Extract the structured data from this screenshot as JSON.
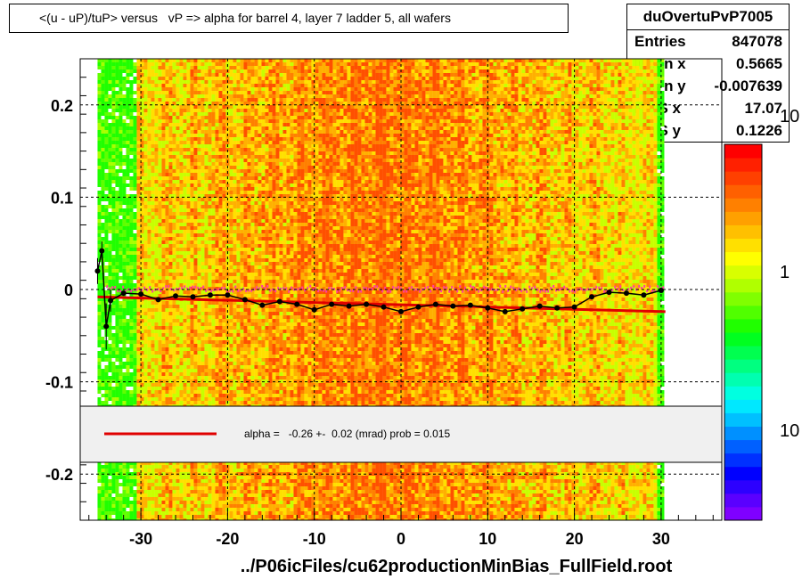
{
  "title": "<(u - uP)/tuP> versus   vP => alpha for barrel 4, layer 7 ladder 5, all wafers",
  "footer_label": "../P06icFiles/cu62productionMinBias_FullField.root",
  "stats": {
    "name": "duOvertuPvP7005",
    "rows": [
      {
        "label": "Entries",
        "value": "847078"
      },
      {
        "label": "Mean x",
        "value": "0.5665"
      },
      {
        "label": "Mean y",
        "value": "-0.007639"
      },
      {
        "label": "RMS x",
        "value": "17.07"
      },
      {
        "label": "RMS y",
        "value": "0.1226"
      }
    ]
  },
  "legend": {
    "text": "alpha =   -0.26 +-  0.02 (mrad) prob = 0.015",
    "line_color": "#e00000"
  },
  "chart_data": {
    "type": "heatmap",
    "xlim": [
      -37,
      37
    ],
    "ylim": [
      -0.25,
      0.25
    ],
    "x_ticks": [
      -30,
      -20,
      -10,
      0,
      10,
      20,
      30
    ],
    "x_tick_labels": [
      "-30",
      "-20",
      "-10",
      "0",
      "10",
      "20",
      "30"
    ],
    "y_ticks": [
      -0.2,
      -0.1,
      0,
      0.1,
      0.2
    ],
    "y_tick_labels": [
      "-0.2",
      "-0.1",
      "0",
      "0.1",
      "0.2"
    ],
    "grid": true,
    "colorbar": {
      "tick_labels": [
        "10",
        "1",
        "10"
      ],
      "colors": [
        "#7f00ff",
        "#5a00ff",
        "#2d00ff",
        "#0000ff",
        "#0030ff",
        "#0060ff",
        "#0090ff",
        "#00c0ff",
        "#00e8ff",
        "#00ffe0",
        "#00ffb0",
        "#00ff80",
        "#00ff50",
        "#00ff20",
        "#20ff00",
        "#50ff00",
        "#80ff00",
        "#b0ff00",
        "#d8ff00",
        "#ffff00",
        "#ffe000",
        "#ffc000",
        "#ffa000",
        "#ff8000",
        "#ff6000",
        "#ff4000",
        "#ff2000",
        "#ff0000"
      ]
    },
    "fit_line": {
      "x": [
        -35,
        30.5
      ],
      "y": [
        -0.008,
        -0.024
      ],
      "color": "#e00000"
    },
    "profile": {
      "x": [
        -35.0,
        -34.5,
        -34.0,
        -33.5,
        -32.0,
        -30.0,
        -28.0,
        -26.0,
        -24.0,
        -22.0,
        -20.0,
        -18.0,
        -16.0,
        -14.0,
        -12.0,
        -10.0,
        -8.0,
        -6.0,
        -4.0,
        -2.0,
        0.0,
        2.0,
        4.0,
        6.0,
        8.0,
        10.0,
        12.0,
        14.0,
        16.0,
        18.0,
        20.0,
        22.0,
        24.0,
        26.0,
        28.0,
        30.0
      ],
      "y": [
        0.02,
        0.042,
        -0.04,
        -0.012,
        -0.004,
        -0.005,
        -0.011,
        -0.007,
        -0.008,
        -0.006,
        -0.006,
        -0.011,
        -0.017,
        -0.013,
        -0.016,
        -0.022,
        -0.016,
        -0.018,
        -0.016,
        -0.019,
        -0.024,
        -0.019,
        -0.016,
        -0.018,
        -0.017,
        -0.02,
        -0.024,
        -0.021,
        -0.018,
        -0.02,
        -0.019,
        -0.008,
        -0.003,
        -0.004,
        -0.006,
        -0.001
      ],
      "color": "#000000"
    }
  }
}
